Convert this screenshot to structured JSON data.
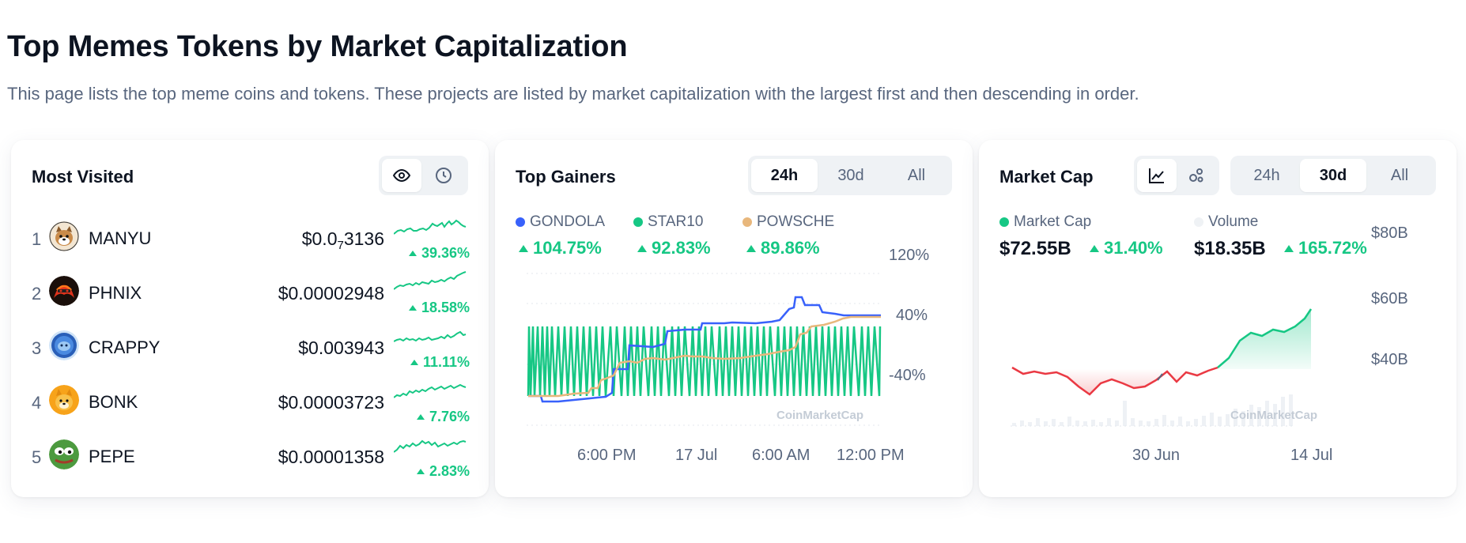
{
  "header": {
    "title": "Top Memes Tokens by Market Capitalization",
    "description": "This page lists the top meme coins and tokens. These projects are listed by market capitalization with the largest first and then descending in order."
  },
  "most_visited": {
    "title": "Most Visited",
    "toggle": [
      "eye-icon",
      "clock-icon"
    ],
    "rows": [
      {
        "rank": "1",
        "name": "MANYU",
        "price_prefix": "$0.0",
        "price_sub": "7",
        "price_suffix": "3136",
        "change": "39.36%",
        "logo": "manyu-dog-logo"
      },
      {
        "rank": "2",
        "name": "PHNIX",
        "price": "$0.00002948",
        "change": "18.58%",
        "logo": "phnix-logo"
      },
      {
        "rank": "3",
        "name": "CRAPPY",
        "price": "$0.003943",
        "change": "11.11%",
        "logo": "crappy-logo"
      },
      {
        "rank": "4",
        "name": "BONK",
        "price": "$0.00003723",
        "change": "7.76%",
        "logo": "bonk-logo"
      },
      {
        "rank": "5",
        "name": "PEPE",
        "price": "$0.00001358",
        "change": "2.83%",
        "logo": "pepe-logo"
      }
    ]
  },
  "top_gainers": {
    "title": "Top Gainers",
    "tabs": [
      "24h",
      "30d",
      "All"
    ],
    "active_tab": "24h",
    "legend": [
      {
        "name": "GONDOLA",
        "color": "#3861fb",
        "change": "104.75%"
      },
      {
        "name": "STAR10",
        "color": "#16c784",
        "change": "92.83%"
      },
      {
        "name": "POWSCHE",
        "color": "#e8b77c",
        "change": "89.86%"
      }
    ],
    "y_ticks": [
      "120%",
      "40%",
      "-40%"
    ],
    "x_ticks": [
      "6:00 PM",
      "17 Jul",
      "6:00 AM",
      "12:00 PM"
    ],
    "watermark": "CoinMarketCap"
  },
  "market_cap": {
    "title": "Market Cap",
    "chart_type_icons": [
      "line-chart-icon",
      "bubbles-icon"
    ],
    "tabs": [
      "24h",
      "30d",
      "All"
    ],
    "active_tab": "30d",
    "legend": [
      {
        "name": "Market Cap",
        "color": "#16c784",
        "value": "$72.55B",
        "change": "31.40%"
      },
      {
        "name": "Volume",
        "color": "#eff2f5",
        "value": "$18.35B",
        "change": "165.72%"
      }
    ],
    "y_ticks": [
      "$80B",
      "$60B",
      "$40B"
    ],
    "x_ticks": [
      "30 Jun",
      "14 Jul"
    ],
    "watermark": "CoinMarketCap"
  },
  "colors": {
    "up": "#16c784",
    "down": "#ea3943",
    "text": "#0d1421",
    "muted": "#58667e"
  }
}
